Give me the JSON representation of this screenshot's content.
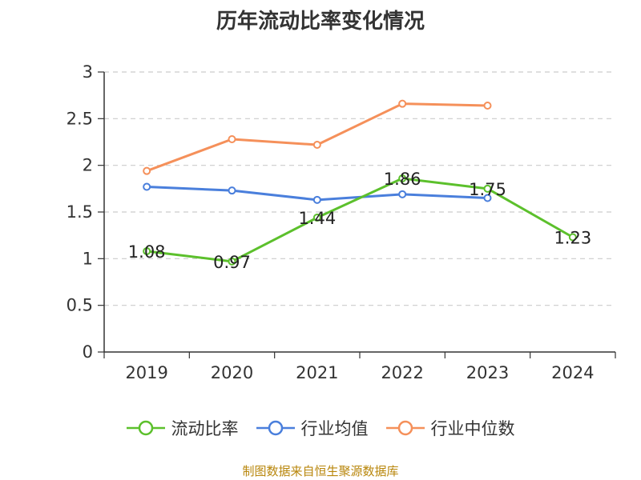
{
  "chart_data": {
    "type": "line",
    "title": "历年流动比率变化情况",
    "categories": [
      "2019",
      "2020",
      "2021",
      "2022",
      "2023",
      "2024"
    ],
    "ylim": [
      0,
      3
    ],
    "y_ticks": [
      "0",
      "0.5",
      "1",
      "1.5",
      "2",
      "2.5",
      "3"
    ],
    "y_tick_values": [
      0,
      0.5,
      1,
      1.5,
      2,
      2.5,
      3
    ],
    "grid": true,
    "legend_position": "bottom",
    "series": [
      {
        "name": "流动比率",
        "color": "#5cc02c",
        "values": [
          1.08,
          0.97,
          1.44,
          1.86,
          1.75,
          1.23
        ],
        "labels": [
          "1.08",
          "0.97",
          "1.44",
          "1.86",
          "1.75",
          "1.23"
        ]
      },
      {
        "name": "行业均值",
        "color": "#4a7fdc",
        "values": [
          1.77,
          1.73,
          1.63,
          1.69,
          1.65,
          null
        ]
      },
      {
        "name": "行业中位数",
        "color": "#f5905a",
        "values": [
          1.94,
          2.28,
          2.22,
          2.66,
          2.64,
          null
        ]
      }
    ]
  },
  "footer": {
    "source": "制图数据来自恒生聚源数据库"
  }
}
